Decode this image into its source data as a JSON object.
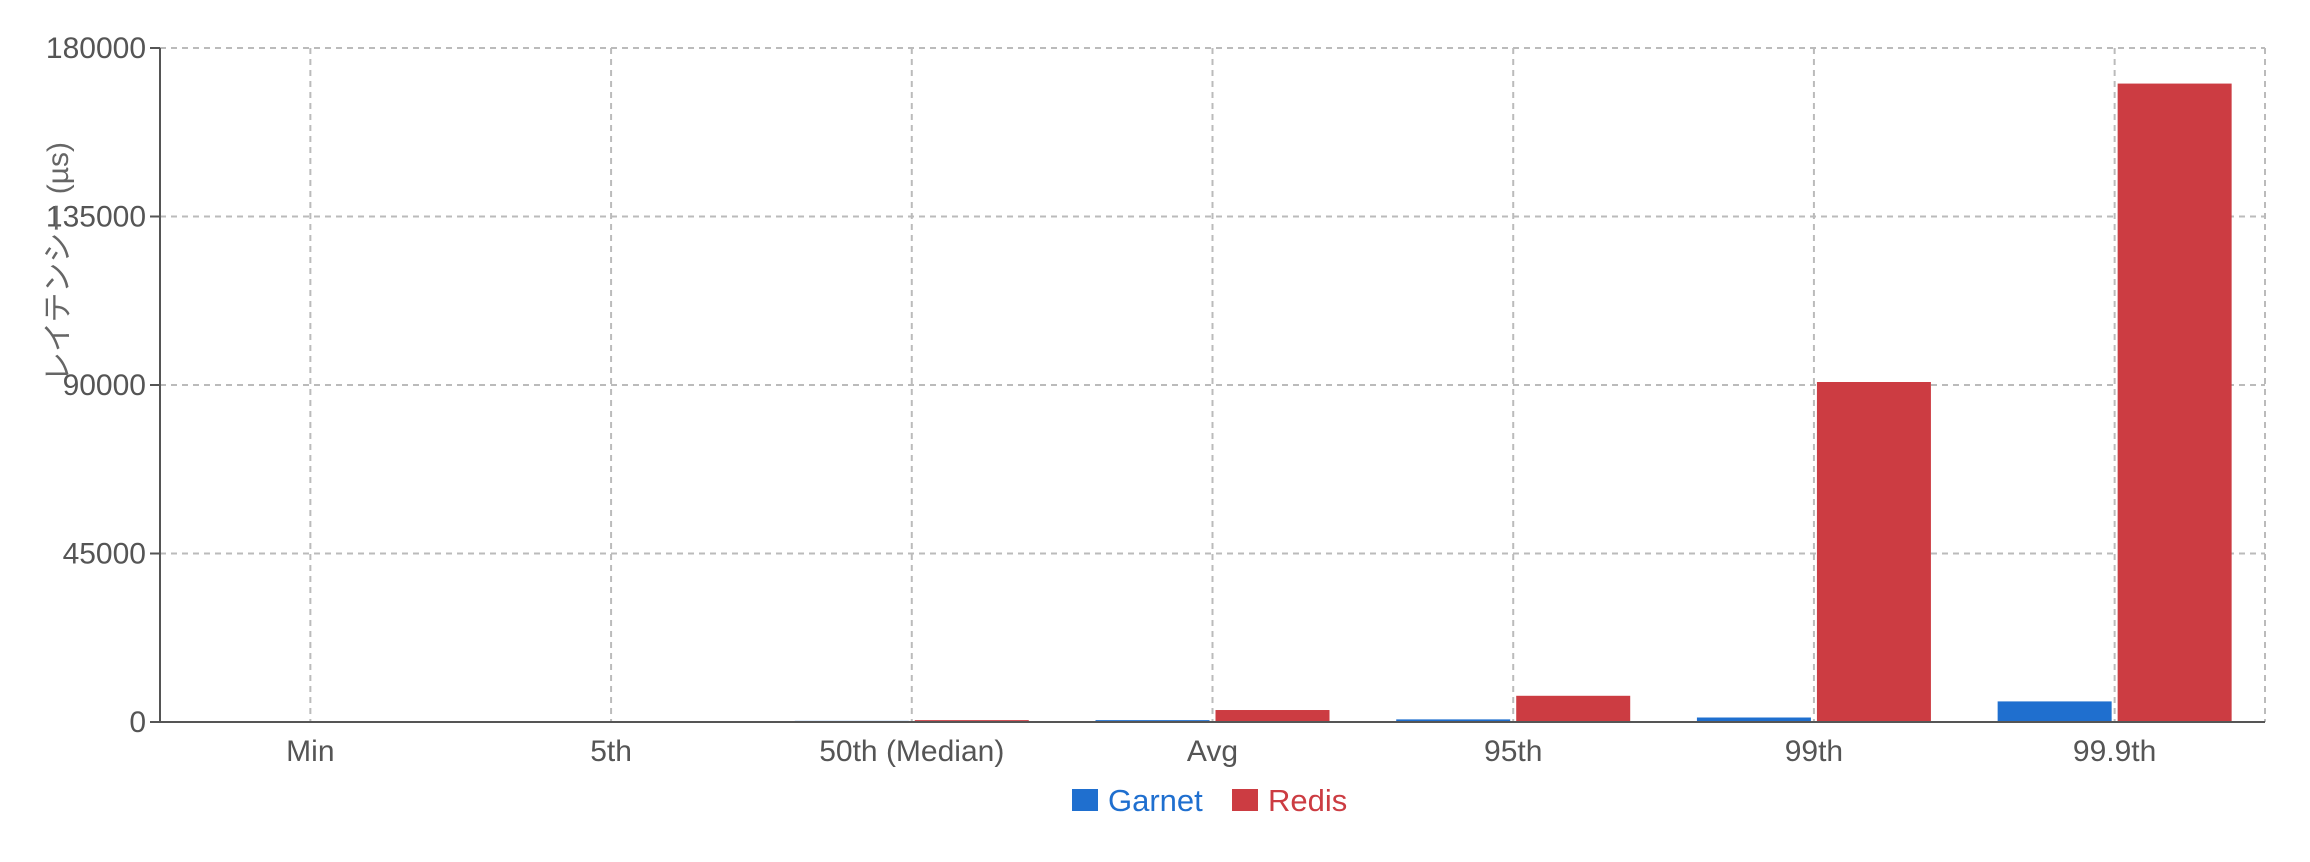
{
  "chart_data": {
    "type": "bar",
    "title": "",
    "xlabel": "",
    "ylabel": "レイテンシー (µs)",
    "categories": [
      "Min",
      "5th",
      "50th (Median)",
      "Avg",
      "95th",
      "99th",
      "99.9th"
    ],
    "series": [
      {
        "name": "Garnet",
        "color": "#1f6fcf",
        "values": [
          30,
          150,
          300,
          500,
          700,
          1200,
          5500
        ]
      },
      {
        "name": "Redis",
        "color": "#cc3c42",
        "values": [
          50,
          200,
          500,
          3200,
          7000,
          90800,
          170500
        ]
      }
    ],
    "ylim": [
      0,
      180000
    ],
    "yticks": [
      0,
      45000,
      90000,
      135000,
      180000
    ],
    "grid": true,
    "legend_position": "bottom"
  }
}
